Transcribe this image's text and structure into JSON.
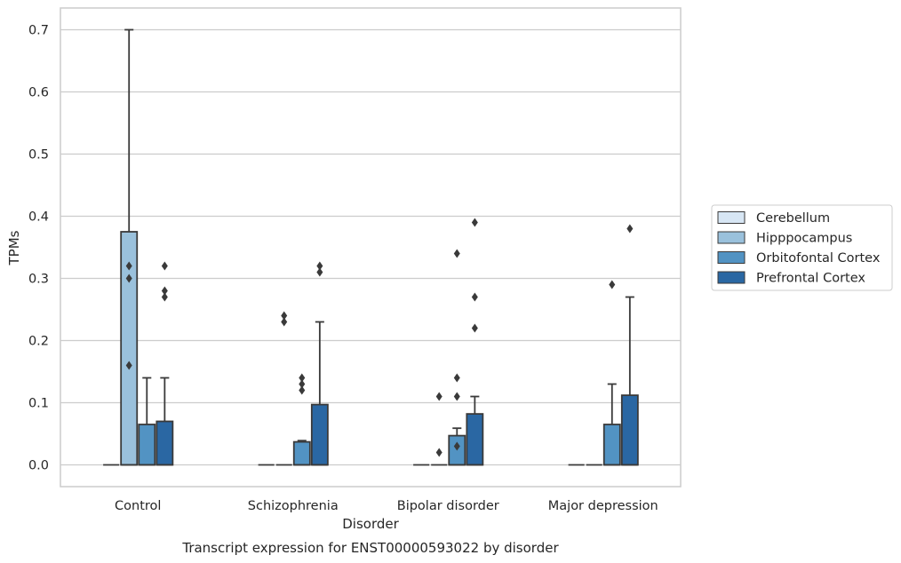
{
  "caption": "Transcript expression for ENST00000593022 by disorder",
  "chart_data": {
    "type": "box",
    "title": "",
    "xlabel": "Disorder",
    "ylabel": "TPMs",
    "ylim": [
      -0.035,
      0.735
    ],
    "yticks": [
      0.0,
      0.1,
      0.2,
      0.3,
      0.4,
      0.5,
      0.6,
      0.7
    ],
    "ytick_labels": [
      "0.0",
      "0.1",
      "0.2",
      "0.3",
      "0.4",
      "0.5",
      "0.6",
      "0.7"
    ],
    "grid": "horizontal",
    "legend_position": "right",
    "categories": [
      "Control",
      "Schizophrenia",
      "Bipolar disorder",
      "Major depression"
    ],
    "series": [
      {
        "name": "Cerebellum",
        "color": "#d7e6f4",
        "boxes": [
          {
            "q1": 0,
            "median": 0,
            "q3": 0,
            "whisker_low": 0,
            "whisker_high": 0,
            "outliers": []
          },
          {
            "q1": 0,
            "median": 0,
            "q3": 0,
            "whisker_low": 0,
            "whisker_high": 0,
            "outliers": []
          },
          {
            "q1": 0,
            "median": 0,
            "q3": 0,
            "whisker_low": 0,
            "whisker_high": 0,
            "outliers": []
          },
          {
            "q1": 0,
            "median": 0,
            "q3": 0,
            "whisker_low": 0,
            "whisker_high": 0,
            "outliers": []
          }
        ]
      },
      {
        "name": "Hipppocampus",
        "color": "#9ac1dc",
        "boxes": [
          {
            "q1": 0,
            "median": 0,
            "q3": 0.375,
            "whisker_low": 0,
            "whisker_high": 0.7,
            "outliers": [
              0.16,
              0.3,
              0.32
            ]
          },
          {
            "q1": 0,
            "median": 0,
            "q3": 0,
            "whisker_low": 0,
            "whisker_high": 0,
            "outliers": [
              0.23,
              0.24
            ]
          },
          {
            "q1": 0,
            "median": 0,
            "q3": 0,
            "whisker_low": 0,
            "whisker_high": 0,
            "outliers": [
              0.02,
              0.11
            ]
          },
          {
            "q1": 0,
            "median": 0,
            "q3": 0,
            "whisker_low": 0,
            "whisker_high": 0,
            "outliers": []
          }
        ]
      },
      {
        "name": "Orbitofontal Cortex",
        "color": "#5293c3",
        "boxes": [
          {
            "q1": 0,
            "median": 0,
            "q3": 0.065,
            "whisker_low": 0,
            "whisker_high": 0.14,
            "outliers": []
          },
          {
            "q1": 0,
            "median": 0,
            "q3": 0.037,
            "whisker_low": 0,
            "whisker_high": 0.039,
            "outliers": [
              0.12,
              0.13,
              0.14
            ]
          },
          {
            "q1": 0,
            "median": 0,
            "q3": 0.047,
            "whisker_low": 0,
            "whisker_high": 0.059,
            "outliers": [
              0.03,
              0.11,
              0.14,
              0.34
            ]
          },
          {
            "q1": 0,
            "median": 0,
            "q3": 0.065,
            "whisker_low": 0,
            "whisker_high": 0.13,
            "outliers": [
              0.29
            ]
          }
        ]
      },
      {
        "name": "Prefrontal Cortex",
        "color": "#2a67a3",
        "boxes": [
          {
            "q1": 0,
            "median": 0,
            "q3": 0.07,
            "whisker_low": 0,
            "whisker_high": 0.14,
            "outliers": [
              0.27,
              0.28,
              0.32
            ]
          },
          {
            "q1": 0,
            "median": 0,
            "q3": 0.097,
            "whisker_low": 0,
            "whisker_high": 0.23,
            "outliers": [
              0.31,
              0.32
            ]
          },
          {
            "q1": 0,
            "median": 0,
            "q3": 0.082,
            "whisker_low": 0,
            "whisker_high": 0.11,
            "outliers": [
              0.22,
              0.27,
              0.39
            ]
          },
          {
            "q1": 0,
            "median": 0,
            "q3": 0.112,
            "whisker_low": 0,
            "whisker_high": 0.27,
            "outliers": [
              0.38
            ]
          }
        ]
      }
    ]
  },
  "colors": {
    "grid": "#cccccc",
    "frame": "#cccccc",
    "box_edge": "#3a3a3a",
    "text": "#262626"
  }
}
